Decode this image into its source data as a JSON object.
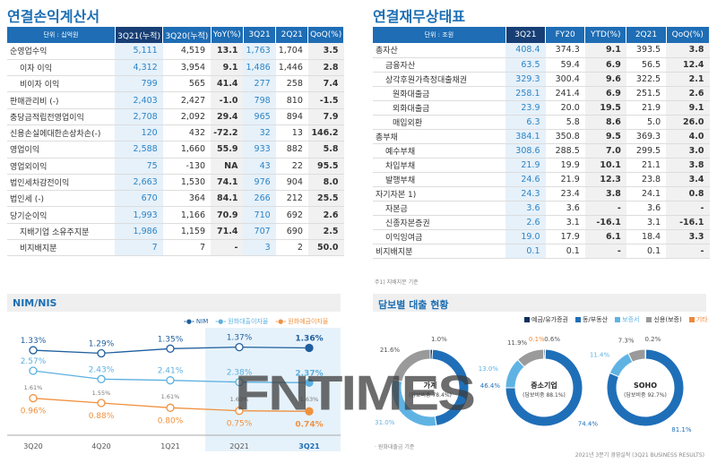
{
  "income": {
    "title": "연결손익계산서",
    "headers": [
      "단위 : 십억원",
      "3Q21(누적)",
      "3Q20(누적)",
      "YoY(%)",
      "3Q21",
      "2Q21",
      "QoQ(%)"
    ],
    "rows": [
      [
        "순영업수익",
        "5,111",
        "4,519",
        "13.1",
        "1,763",
        "1,704",
        "3.5",
        0
      ],
      [
        "이자 이익",
        "4,312",
        "3,954",
        "9.1",
        "1,486",
        "1,446",
        "2.8",
        1
      ],
      [
        "비이자 이익",
        "799",
        "565",
        "41.4",
        "277",
        "258",
        "7.4",
        1
      ],
      [
        "판매관리비 (-)",
        "2,403",
        "2,427",
        "-1.0",
        "798",
        "810",
        "-1.5",
        0
      ],
      [
        "충당금적립전영업이익",
        "2,708",
        "2,092",
        "29.4",
        "965",
        "894",
        "7.9",
        0
      ],
      [
        "신용손실에대한손상차손(-)",
        "120",
        "432",
        "-72.2",
        "32",
        "13",
        "146.2",
        0
      ],
      [
        "영업이익",
        "2,588",
        "1,660",
        "55.9",
        "933",
        "882",
        "5.8",
        0
      ],
      [
        "영업외이익",
        "75",
        "-130",
        "NA",
        "43",
        "22",
        "95.5",
        0
      ],
      [
        "법인세차감전이익",
        "2,663",
        "1,530",
        "74.1",
        "976",
        "904",
        "8.0",
        0
      ],
      [
        "법인세 (-)",
        "670",
        "364",
        "84.1",
        "266",
        "212",
        "25.5",
        0
      ],
      [
        "당기순이익",
        "1,993",
        "1,166",
        "70.9",
        "710",
        "692",
        "2.6",
        0
      ],
      [
        "지배기업 소유주지분",
        "1,986",
        "1,159",
        "71.4",
        "707",
        "690",
        "2.5",
        1
      ],
      [
        "비지배지분",
        "7",
        "7",
        "-",
        "3",
        "2",
        "50.0",
        1
      ]
    ]
  },
  "balance": {
    "title": "연결재무상태표",
    "headers": [
      "단위 : 조원",
      "3Q21",
      "FY20",
      "YTD(%)",
      "2Q21",
      "QoQ(%)"
    ],
    "rows": [
      [
        "총자산",
        "408.4",
        "374.3",
        "9.1",
        "393.5",
        "3.8",
        0
      ],
      [
        "금융자산",
        "63.5",
        "59.4",
        "6.9",
        "56.5",
        "12.4",
        1
      ],
      [
        "상각후원가측정대출채권",
        "329.3",
        "300.4",
        "9.6",
        "322.5",
        "2.1",
        1
      ],
      [
        "원화대출금",
        "258.1",
        "241.4",
        "6.9",
        "251.5",
        "2.6",
        2
      ],
      [
        "외화대출금",
        "23.9",
        "20.0",
        "19.5",
        "21.9",
        "9.1",
        2
      ],
      [
        "매입외환",
        "6.3",
        "5.8",
        "8.6",
        "5.0",
        "26.0",
        2
      ],
      [
        "총부채",
        "384.1",
        "350.8",
        "9.5",
        "369.3",
        "4.0",
        0
      ],
      [
        "예수부채",
        "308.6",
        "288.5",
        "7.0",
        "299.5",
        "3.0",
        1
      ],
      [
        "차입부채",
        "21.9",
        "19.9",
        "10.1",
        "21.1",
        "3.8",
        1
      ],
      [
        "발행부채",
        "24.6",
        "21.9",
        "12.3",
        "23.8",
        "3.4",
        1
      ],
      [
        "자기자본 1)",
        "24.3",
        "23.4",
        "3.8",
        "24.1",
        "0.8",
        0
      ],
      [
        "자본금",
        "3.6",
        "3.6",
        "-",
        "3.6",
        "-",
        1
      ],
      [
        "신종자본증권",
        "2.6",
        "3.1",
        "-16.1",
        "3.1",
        "-16.1",
        1
      ],
      [
        "이익잉여금",
        "19.0",
        "17.9",
        "6.1",
        "18.4",
        "3.3",
        1
      ],
      [
        "비지배지분",
        "0.1",
        "0.1",
        "-",
        "0.1",
        "-",
        0
      ]
    ],
    "footnote": "주1) 지배지분 기준"
  },
  "nim": {
    "title": "NIM/NIS"
  },
  "collateral": {
    "title": "담보별 대출 현황",
    "footnote": "· 원화대출금 기준"
  },
  "footer": "2021년 3분기 경영실적 (3Q21 BUSINESS RESULTS)",
  "watermark": "FNTIMES",
  "chart_data": [
    {
      "type": "line",
      "categories": [
        "3Q20",
        "4Q20",
        "1Q21",
        "2Q21",
        "3Q21"
      ],
      "highlight": [
        "2Q21",
        "3Q21"
      ],
      "series": [
        {
          "name": "NIM",
          "values": [
            1.33,
            1.29,
            1.35,
            1.37,
            1.36
          ],
          "labels": [
            "1.33%",
            "1.29%",
            "1.35%",
            "1.37%",
            "1.36%"
          ],
          "color": "#1f5f9e"
        },
        {
          "name": "원화대출이자율",
          "values": [
            2.57,
            2.43,
            2.41,
            2.38,
            2.37
          ],
          "labels": [
            "2.57%",
            "2.43%",
            "2.41%",
            "2.38%",
            "2.37%"
          ],
          "color": "#5cb0e0"
        },
        {
          "name": "원화예금이자율",
          "values": [
            0.96,
            0.88,
            0.8,
            0.75,
            0.74
          ],
          "labels": [
            "0.96%",
            "0.88%",
            "0.80%",
            "0.75%",
            "0.74%"
          ],
          "color": "#f0913f"
        }
      ],
      "spread_labels": [
        "1.61%",
        "1.55%",
        "1.61%",
        "1.63%",
        "1.63%"
      ]
    },
    {
      "type": "pie",
      "legend": [
        {
          "name": "예금/유가증권",
          "color": "#0d2f5c"
        },
        {
          "name": "동/부동산",
          "color": "#1f6fb8"
        },
        {
          "name": "보증서",
          "color": "#5fb3e3"
        },
        {
          "name": "신용(보증)",
          "color": "#9a9a9a"
        },
        {
          "name": "기타",
          "color": "#f0883a"
        }
      ],
      "donuts": [
        {
          "name": "가계",
          "sub": "(담보비중 78.4%)",
          "values": [
            1.0,
            46.4,
            31.0,
            21.6,
            0
          ]
        },
        {
          "name": "중소기업",
          "sub": "(담보비중 88.1%)",
          "values": [
            0.6,
            74.4,
            13.0,
            11.9,
            0.1
          ]
        },
        {
          "name": "SOHO",
          "sub": "(담보비중 92.7%)",
          "values": [
            0.2,
            81.1,
            11.4,
            7.3,
            0
          ]
        }
      ]
    }
  ]
}
